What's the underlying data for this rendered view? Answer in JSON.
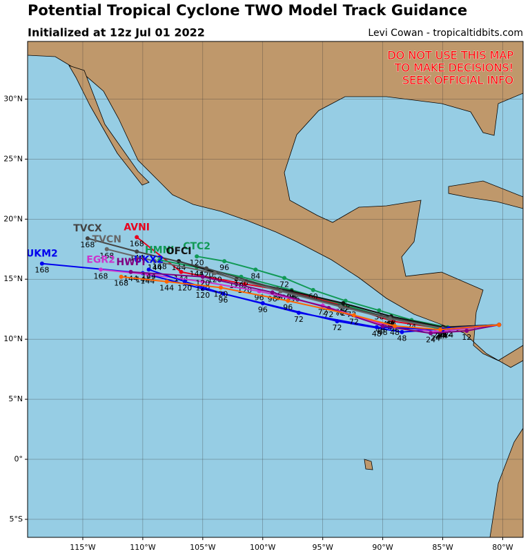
{
  "chart_data": {
    "type": "track_map",
    "title": "Potential Tropical Cyclone TWO Model Track Guidance",
    "subtitle": "Initialized at 12z Jul 01 2022",
    "credit": "Levi Cowan - tropicaltidbits.com",
    "warning": [
      "DO NOT USE THIS MAP",
      "TO MAKE DECISIONS!",
      "SEEK OFFICIAL INFO"
    ],
    "xlim": [
      -119.6,
      -78.3
    ],
    "ylim": [
      -6.5,
      34.8
    ],
    "xticks": [
      {
        "value": -115,
        "label": "115°W"
      },
      {
        "value": -110,
        "label": "110°W"
      },
      {
        "value": -105,
        "label": "105°W"
      },
      {
        "value": -100,
        "label": "100°W"
      },
      {
        "value": -95,
        "label": "95°W"
      },
      {
        "value": -90,
        "label": "90°W"
      },
      {
        "value": -85,
        "label": "85°W"
      },
      {
        "value": -80,
        "label": "80°W"
      }
    ],
    "yticks": [
      {
        "value": -5,
        "label": "5°S"
      },
      {
        "value": 0,
        "label": "0°"
      },
      {
        "value": 5,
        "label": "5°N"
      },
      {
        "value": 10,
        "label": "10°N"
      },
      {
        "value": 15,
        "label": "15°N"
      },
      {
        "value": 20,
        "label": "20°N"
      },
      {
        "value": 25,
        "label": "25°N"
      },
      {
        "value": 30,
        "label": "30°N"
      }
    ],
    "grid": true,
    "series": [
      {
        "name": "AVNI",
        "color": "#e8001c",
        "lon": [
          -80.3,
          -85.2,
          -89.2,
          -92.6,
          -97.3,
          -101.5,
          -106.8,
          -110.5
        ],
        "lat": [
          11.2,
          10.9,
          11.5,
          12.6,
          13.9,
          14.6,
          15.6,
          18.5
        ],
        "hours": [
          null,
          24,
          48,
          72,
          96,
          120,
          144,
          168
        ]
      },
      {
        "name": "HMNI",
        "color": "#119955",
        "lon": [
          -80.3,
          -85.4,
          -89.6,
          -93.3,
          -97.6,
          -101.8,
          -105.5,
          -108.6
        ],
        "lat": [
          11.2,
          10.9,
          11.8,
          12.9,
          14.1,
          15.2,
          16.0,
          16.6
        ],
        "hours": [
          null,
          24,
          48,
          72,
          96,
          120,
          144,
          168
        ]
      },
      {
        "name": "CTC2",
        "color": "#119955",
        "lon": [
          -80.3,
          -84.6,
          -87.6,
          -90.3,
          -93.1,
          -95.8,
          -98.2,
          -100.6,
          -103.2,
          -105.5
        ],
        "lat": [
          11.2,
          11.0,
          11.6,
          12.4,
          13.2,
          14.1,
          15.1,
          15.8,
          16.5,
          16.9
        ],
        "hours": [
          null,
          12,
          24,
          36,
          48,
          60,
          72,
          84,
          96,
          120
        ]
      },
      {
        "name": "OFCI",
        "color": "#111111",
        "lon": [
          -80.3,
          -85.0,
          -89.3,
          -93.3,
          -97.6,
          -102.2,
          -107.0
        ],
        "lat": [
          11.2,
          11.0,
          11.9,
          13.0,
          14.0,
          15.0,
          16.5
        ],
        "hours": [
          null,
          24,
          48,
          72,
          96,
          120,
          144
        ]
      },
      {
        "name": "TVCX",
        "color": "#444444",
        "lon": [
          -80.3,
          -85.0,
          -89.4,
          -93.6,
          -98.8,
          -104.7,
          -110.5,
          -114.6
        ],
        "lat": [
          11.2,
          10.9,
          11.8,
          12.8,
          14.2,
          15.9,
          17.3,
          18.4
        ],
        "hours": [
          null,
          24,
          48,
          72,
          96,
          120,
          144,
          168
        ]
      },
      {
        "name": "TVCN",
        "color": "#666666",
        "lon": [
          -80.3,
          -85.0,
          -89.4,
          -93.5,
          -98.5,
          -104.0,
          -109.0,
          -113.0
        ],
        "lat": [
          11.2,
          10.9,
          11.7,
          12.7,
          14.0,
          15.5,
          16.5,
          17.5
        ],
        "hours": [
          null,
          24,
          48,
          72,
          96,
          120,
          144,
          168
        ]
      },
      {
        "name": "UKM2",
        "color": "#0000ee",
        "lon": [
          -80.3,
          -84.5,
          -88.4,
          -93.8,
          -100.0,
          -105.0,
          -110.0,
          -118.4
        ],
        "lat": [
          11.2,
          10.9,
          10.6,
          11.5,
          13.0,
          14.2,
          15.5,
          16.3
        ],
        "hours": [
          null,
          24,
          48,
          72,
          96,
          120,
          144,
          168
        ]
      },
      {
        "name": "EGR2",
        "color": "#cc33cc",
        "lon": [
          -80.3,
          -85.6,
          -90.2,
          -95.0,
          -100.3,
          -105.0,
          -109.6,
          -113.5
        ],
        "lat": [
          11.2,
          10.6,
          11.3,
          12.8,
          14.0,
          14.8,
          15.4,
          15.8
        ],
        "hours": [
          null,
          24,
          48,
          72,
          96,
          120,
          144,
          168
        ]
      },
      {
        "name": "UKX2",
        "color": "#0000ee",
        "lon": [
          -80.3,
          -85.0,
          -90.5,
          -97.0,
          -103.3,
          -106.5,
          -109.5
        ],
        "lat": [
          11.2,
          10.8,
          11.0,
          12.2,
          13.8,
          14.8,
          15.8
        ],
        "hours": [
          null,
          24,
          48,
          72,
          96,
          120,
          144
        ]
      },
      {
        "name": "HWFI",
        "color": "#800080",
        "lon": [
          -80.3,
          -83.0,
          -86.0,
          -90.0,
          -94.5,
          -99.2,
          -105.0,
          -111.0
        ],
        "lat": [
          11.2,
          10.7,
          10.5,
          11.1,
          12.6,
          13.9,
          15.2,
          15.6
        ],
        "hours": [
          null,
          12,
          24,
          48,
          72,
          96,
          120,
          144
        ]
      },
      {
        "color": "#ff6600",
        "lon": [
          -80.3,
          -85.2,
          -89.0,
          -92.4,
          -97.9,
          -103.5,
          -108.0,
          -111.8
        ],
        "lat": [
          11.2,
          10.8,
          11.1,
          12.0,
          13.2,
          14.3,
          14.8,
          15.2
        ],
        "hours": [
          null,
          24,
          48,
          72,
          96,
          120,
          144,
          168
        ]
      }
    ]
  }
}
